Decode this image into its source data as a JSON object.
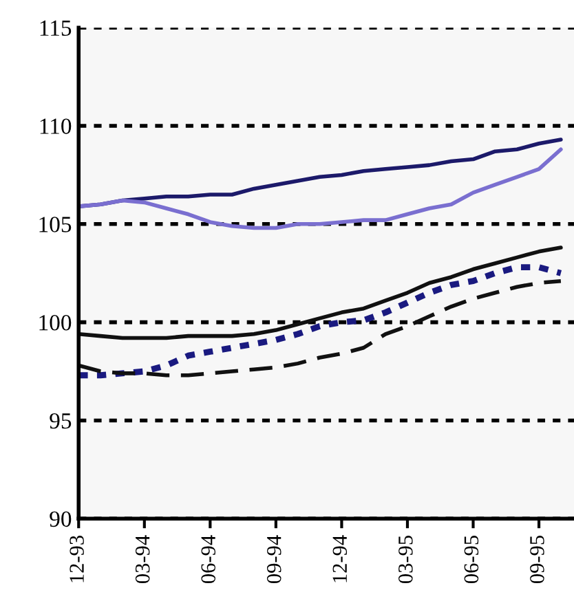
{
  "chart_data": {
    "type": "line",
    "categories": [
      "12-93",
      null,
      null,
      "03-94",
      null,
      null,
      "06-94",
      null,
      null,
      "09-94",
      null,
      null,
      "12-94",
      null,
      null,
      "03-95",
      null,
      null,
      "06-95",
      null,
      null,
      "09-95",
      null
    ],
    "ylim": [
      90,
      115
    ],
    "yticks": [
      90,
      95,
      100,
      105,
      110,
      115
    ],
    "grid": "y",
    "marker": "none",
    "series": [
      {
        "color": "#1c1a6a",
        "line_style": "solid",
        "values": [
          105.9,
          106.0,
          106.2,
          106.3,
          106.4,
          106.4,
          106.5,
          106.5,
          106.8,
          107.0,
          107.2,
          107.4,
          107.5,
          107.7,
          107.8,
          107.9,
          108.0,
          108.2,
          108.3,
          108.7,
          108.8,
          109.1,
          109.3
        ]
      },
      {
        "color": "#7a6fd0",
        "line_style": "solid",
        "values": [
          105.9,
          106.0,
          106.2,
          106.1,
          105.8,
          105.5,
          105.1,
          104.9,
          104.8,
          104.8,
          105.0,
          105.0,
          105.1,
          105.2,
          105.2,
          105.5,
          105.8,
          106.0,
          106.6,
          107.0,
          107.4,
          107.8,
          108.8
        ]
      },
      {
        "color": "#111111",
        "line_style": "solid",
        "values": [
          99.4,
          99.3,
          99.2,
          99.2,
          99.2,
          99.3,
          99.3,
          99.3,
          99.4,
          99.6,
          99.9,
          100.2,
          100.5,
          100.7,
          101.1,
          101.5,
          102.0,
          102.3,
          102.7,
          103.0,
          103.3,
          103.6,
          103.8
        ]
      },
      {
        "color": "#1a1a80",
        "line_style": "dotted",
        "values": [
          97.3,
          97.3,
          97.4,
          97.5,
          97.8,
          98.3,
          98.5,
          98.7,
          98.9,
          99.1,
          99.4,
          99.8,
          100.0,
          100.1,
          100.5,
          101.0,
          101.5,
          101.9,
          102.1,
          102.5,
          102.8,
          102.8,
          102.5
        ]
      },
      {
        "color": "#111111",
        "line_style": "dashed",
        "values": [
          97.8,
          97.5,
          97.4,
          97.4,
          97.3,
          97.3,
          97.4,
          97.5,
          97.6,
          97.7,
          97.9,
          98.2,
          98.4,
          98.7,
          99.4,
          99.8,
          100.3,
          100.8,
          101.2,
          101.5,
          101.8,
          102.0,
          102.1
        ]
      }
    ]
  }
}
